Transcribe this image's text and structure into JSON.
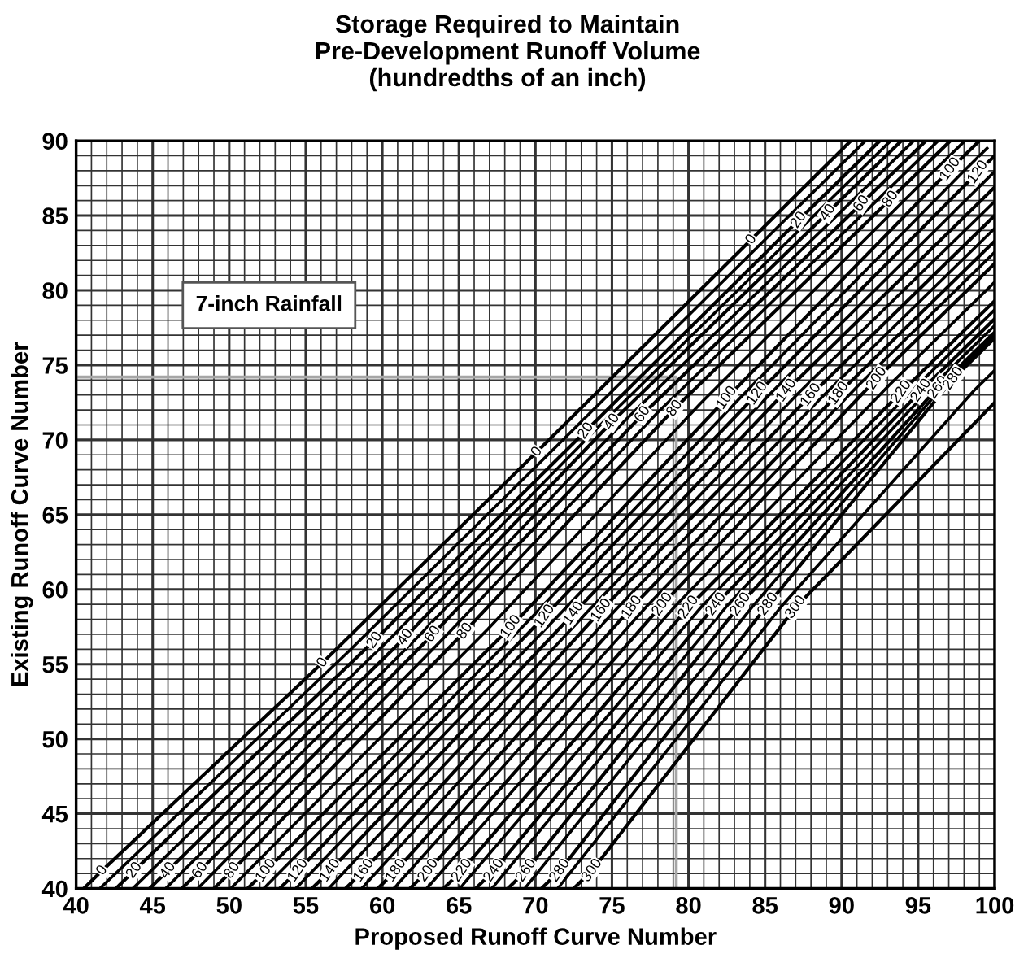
{
  "chart_data": {
    "type": "line",
    "title": "Storage Required to Maintain\nPre-Development Runoff Volume\n(hundredths of an inch)",
    "xlabel": "Proposed Runoff Curve Number",
    "ylabel": "Existing Runoff Curve Number",
    "annotations": [
      "7-inch Rainfall"
    ],
    "xlim": [
      40,
      100
    ],
    "ylim": [
      40,
      90
    ],
    "xticks": [
      40,
      {
        "value": 41,
        "label": null
      },
      {
        "value": 42,
        "label": null
      },
      {
        "value": 43,
        "label": null
      },
      {
        "value": 44,
        "label": null
      },
      45,
      {
        "value": 46,
        "label": null
      },
      {
        "value": 47,
        "label": null
      },
      {
        "value": 48,
        "label": null
      },
      {
        "value": 49,
        "label": null
      },
      50,
      {
        "value": 51,
        "label": null
      },
      {
        "value": 52,
        "label": null
      },
      {
        "value": 53,
        "label": null
      },
      {
        "value": 54,
        "label": null
      },
      55,
      {
        "value": 56,
        "label": null
      },
      {
        "value": 57,
        "label": null
      },
      {
        "value": 58,
        "label": null
      },
      {
        "value": 59,
        "label": null
      },
      60,
      {
        "value": 61,
        "label": null
      },
      {
        "value": 62,
        "label": null
      },
      {
        "value": 63,
        "label": null
      },
      {
        "value": 64,
        "label": null
      },
      65,
      {
        "value": 66,
        "label": null
      },
      {
        "value": 67,
        "label": null
      },
      {
        "value": 68,
        "label": null
      },
      {
        "value": 69,
        "label": null
      },
      70,
      {
        "value": 71,
        "label": null
      },
      {
        "value": 72,
        "label": null
      },
      {
        "value": 73,
        "label": null
      },
      {
        "value": 74,
        "label": null
      },
      75,
      {
        "value": 76,
        "label": null
      },
      {
        "value": 77,
        "label": null
      },
      {
        "value": 78,
        "label": null
      },
      {
        "value": 79,
        "label": null
      },
      80,
      {
        "value": 81,
        "label": null
      },
      {
        "value": 82,
        "label": null
      },
      {
        "value": 83,
        "label": null
      },
      {
        "value": 84,
        "label": null
      },
      85,
      {
        "value": 86,
        "label": null
      },
      {
        "value": 87,
        "label": null
      },
      {
        "value": 88,
        "label": null
      },
      {
        "value": 89,
        "label": null
      },
      90,
      {
        "value": 91,
        "label": null
      },
      {
        "value": 92,
        "label": null
      },
      {
        "value": 93,
        "label": null
      },
      {
        "value": 94,
        "label": null
      },
      95,
      {
        "value": 96,
        "label": null
      },
      {
        "value": 97,
        "label": null
      },
      {
        "value": 98,
        "label": null
      },
      {
        "value": 99,
        "label": null
      },
      100
    ],
    "yticks": [
      40,
      {
        "value": 41,
        "label": null
      },
      {
        "value": 42,
        "label": null
      },
      {
        "value": 43,
        "label": null
      },
      {
        "value": 44,
        "label": null
      },
      45,
      {
        "value": 46,
        "label": null
      },
      {
        "value": 47,
        "label": null
      },
      {
        "value": 48,
        "label": null
      },
      {
        "value": 49,
        "label": null
      },
      50,
      {
        "value": 51,
        "label": null
      },
      {
        "value": 52,
        "label": null
      },
      {
        "value": 53,
        "label": null
      },
      {
        "value": 54,
        "label": null
      },
      55,
      {
        "value": 56,
        "label": null
      },
      {
        "value": 57,
        "label": null
      },
      {
        "value": 58,
        "label": null
      },
      {
        "value": 59,
        "label": null
      },
      60,
      {
        "value": 61,
        "label": null
      },
      {
        "value": 62,
        "label": null
      },
      {
        "value": 63,
        "label": null
      },
      {
        "value": 64,
        "label": null
      },
      65,
      {
        "value": 66,
        "label": null
      },
      {
        "value": 67,
        "label": null
      },
      {
        "value": 68,
        "label": null
      },
      {
        "value": 69,
        "label": null
      },
      70,
      {
        "value": 71,
        "label": null
      },
      {
        "value": 72,
        "label": null
      },
      {
        "value": 73,
        "label": null
      },
      {
        "value": 74,
        "label": null
      },
      75,
      {
        "value": 76,
        "label": null
      },
      {
        "value": 77,
        "label": null
      },
      {
        "value": 78,
        "label": null
      },
      {
        "value": 79,
        "label": null
      },
      80,
      {
        "value": 81,
        "label": null
      },
      {
        "value": 82,
        "label": null
      },
      {
        "value": 83,
        "label": null
      },
      {
        "value": 84,
        "label": null
      },
      85,
      {
        "value": 86,
        "label": null
      },
      {
        "value": 87,
        "label": null
      },
      {
        "value": 88,
        "label": null
      },
      {
        "value": 89,
        "label": null
      },
      90
    ],
    "grid": true,
    "series": [
      {
        "name": "0",
        "color": "#000000",
        "x": [
          40.5,
          41.7,
          56.1,
          70.1,
          84.1,
          90.6
        ],
        "values": [
          40,
          41.2,
          55.1,
          69.2,
          83.4,
          90
        ]
      },
      {
        "name": "20",
        "color": "#000000",
        "x": [
          42.6,
          43.8,
          59.5,
          73.3,
          87.2,
          92.5
        ],
        "values": [
          40,
          41.2,
          56.6,
          70.6,
          84.7,
          90
        ]
      },
      {
        "name": "40",
        "color": "#000000",
        "x": [
          44.8,
          46.0,
          61.5,
          75.0,
          89.1,
          93.9
        ],
        "values": [
          40,
          41.2,
          56.8,
          71.2,
          85.2,
          90
        ]
      },
      {
        "name": "60",
        "color": "#000000",
        "x": [
          46.9,
          48.1,
          63.3,
          77.0,
          91.3,
          95.5
        ],
        "values": [
          40,
          41.2,
          57.0,
          71.7,
          85.8,
          90
        ]
      },
      {
        "name": "80",
        "color": "#000000",
        "x": [
          49.0,
          50.2,
          65.4,
          79.1,
          93.2,
          97.1
        ],
        "values": [
          40,
          41.2,
          57.2,
          72.1,
          86.1,
          90
        ]
      },
      {
        "name": "100",
        "color": "#000000",
        "x": [
          51.2,
          52.4,
          68.4,
          82.5,
          97.1,
          99.0
        ],
        "values": [
          40,
          41.2,
          57.5,
          72.8,
          88.1,
          90
        ]
      },
      {
        "name": "120",
        "color": "#000000",
        "x": [
          53.3,
          54.5,
          70.6,
          84.5,
          98.9,
          100
        ],
        "values": [
          40,
          41.2,
          58.2,
          73.1,
          87.9,
          89.0
        ]
      },
      {
        "name": "140",
        "color": "#000000",
        "x": [
          55.4,
          56.6,
          72.5,
          86.4,
          100
        ],
        "values": [
          40,
          41.2,
          58.4,
          73.3,
          86.9
        ]
      },
      {
        "name": "160",
        "color": "#000000",
        "x": [
          57.6,
          58.8,
          74.3,
          88.0,
          100
        ],
        "values": [
          40,
          41.2,
          58.6,
          73.0,
          85.0
        ]
      },
      {
        "name": "180",
        "color": "#000000",
        "x": [
          59.7,
          60.9,
          76.3,
          89.8,
          100
        ],
        "values": [
          40,
          41.2,
          58.8,
          73.1,
          83.3
        ]
      },
      {
        "name": "200",
        "color": "#000000",
        "x": [
          61.8,
          63.0,
          78.3,
          92.3,
          100
        ],
        "values": [
          40,
          41.2,
          59.0,
          74.1,
          81.8
        ]
      },
      {
        "name": "220",
        "color": "#000000",
        "x": [
          64.0,
          65.2,
          80.0,
          93.9,
          100
        ],
        "values": [
          40,
          41.2,
          58.8,
          73.2,
          79.3
        ]
      },
      {
        "name": "240",
        "color": "#000000",
        "x": [
          66.1,
          67.3,
          81.8,
          95.2,
          100
        ],
        "values": [
          40,
          41.2,
          59.0,
          73.3,
          78.1
        ]
      },
      {
        "name": "260",
        "color": "#000000",
        "x": [
          68.2,
          69.4,
          83.4,
          96.3,
          100
        ],
        "values": [
          40,
          41.2,
          59.0,
          73.5,
          77.2
        ]
      },
      {
        "name": "280",
        "color": "#000000",
        "x": [
          70.4,
          71.6,
          85.2,
          97.3,
          100
        ],
        "values": [
          40,
          41.2,
          59.0,
          74.1,
          76.8
        ]
      },
      {
        "name": "300",
        "color": "#000000",
        "x": [
          72.5,
          73.7,
          87.0,
          100
        ],
        "values": [
          40,
          41.2,
          58.8,
          72.5
        ]
      },
      {
        "color": "#000000",
        "x": [
          41.55,
          57.8,
          71.7,
          85.65,
          91.55
        ],
        "values": [
          40,
          55.85,
          69.9,
          84.05,
          90
        ]
      },
      {
        "color": "#000000",
        "x": [
          43.7,
          60.5,
          74.15,
          88.15,
          93.2
        ],
        "values": [
          40,
          56.7,
          70.9,
          84.95,
          90
        ]
      },
      {
        "color": "#000000",
        "x": [
          45.85,
          62.4,
          76.0,
          90.2,
          94.7
        ],
        "values": [
          40,
          56.9,
          71.45,
          85.5,
          90
        ]
      },
      {
        "color": "#000000",
        "x": [
          47.95,
          64.35,
          78.05,
          92.25,
          96.3
        ],
        "values": [
          40,
          57.1,
          71.9,
          85.95,
          90
        ]
      },
      {
        "color": "#000000",
        "x": [
          50.1,
          66.9,
          80.8,
          95.15,
          98.05
        ],
        "values": [
          40,
          57.35,
          72.45,
          87.1,
          90
        ]
      },
      {
        "color": "#000000",
        "x": [
          52.25,
          69.5,
          83.5,
          98.0,
          99.5
        ],
        "values": [
          40,
          57.85,
          72.95,
          88.0,
          89.5
        ]
      },
      {
        "color": "#000000",
        "x": [
          54.35,
          71.55,
          85.45,
          100
        ],
        "values": [
          40,
          58.3,
          73.2,
          87.95
        ]
      },
      {
        "color": "#000000",
        "x": [
          56.5,
          73.4,
          87.2,
          100
        ],
        "values": [
          40,
          58.5,
          73.15,
          85.95
        ]
      },
      {
        "color": "#000000",
        "x": [
          58.65,
          75.3,
          88.9,
          100
        ],
        "values": [
          40,
          58.7,
          73.05,
          84.15
        ]
      },
      {
        "color": "#000000",
        "x": [
          60.75,
          77.3,
          91.05,
          100
        ],
        "values": [
          40,
          58.9,
          73.6,
          82.55
        ]
      },
      {
        "color": "#000000",
        "x": [
          62.9,
          79.15,
          93.1,
          100
        ],
        "values": [
          40,
          58.9,
          73.65,
          80.55
        ]
      },
      {
        "color": "#000000",
        "x": [
          65.05,
          80.9,
          94.55,
          100
        ],
        "values": [
          40,
          58.9,
          73.25,
          78.7
        ]
      },
      {
        "color": "#000000",
        "x": [
          67.15,
          82.6,
          95.75,
          100
        ],
        "values": [
          40,
          59.0,
          73.4,
          77.65
        ]
      },
      {
        "color": "#000000",
        "x": [
          69.3,
          84.3,
          96.8,
          100
        ],
        "values": [
          40,
          59.0,
          73.8,
          77.0
        ]
      },
      {
        "color": "#000000",
        "x": [
          71.45,
          86.1,
          98.65,
          100
        ],
        "values": [
          40,
          58.9,
          73.3,
          74.65
        ]
      },
      {
        "color": "#a6a6a6",
        "x": [
          40,
          79.2,
          79.2
        ],
        "values": [
          74.2,
          74.2,
          40
        ]
      }
    ]
  }
}
